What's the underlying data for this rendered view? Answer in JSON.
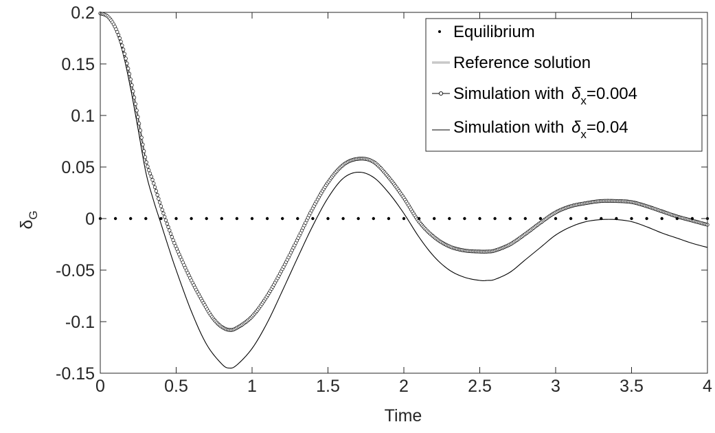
{
  "chart_data": {
    "type": "line",
    "title": "",
    "xlabel": "Time",
    "ylabel": {
      "main": "δ",
      "sub": "G"
    },
    "xlim": [
      0,
      4
    ],
    "ylim": [
      -0.15,
      0.2
    ],
    "x_ticks": [
      "0",
      "0.5",
      "1",
      "1.5",
      "2",
      "2.5",
      "3",
      "3.5",
      "4"
    ],
    "y_ticks": [
      "-0.15",
      "-0.1",
      "-0.05",
      "0",
      "0.05",
      "0.1",
      "0.15",
      "0.2"
    ],
    "grid": false,
    "legend_position": "top-right",
    "legend": [
      {
        "key": "equilibrium",
        "text": "Equilibrium",
        "suffix": ""
      },
      {
        "key": "reference",
        "text": "Reference solution",
        "suffix": ""
      },
      {
        "key": "fine",
        "text": "Simulation with ",
        "symbol": "δ",
        "sub": "x",
        "suffix": "=0.004"
      },
      {
        "key": "coarse",
        "text": "Simulation with ",
        "symbol": "δ",
        "sub": "x",
        "suffix": "=0.04"
      }
    ],
    "series": [
      {
        "key": "equilibrium",
        "style": "dots",
        "color": "#000000",
        "x": [
          0,
          0.1,
          0.2,
          0.3,
          0.4,
          0.5,
          0.6,
          0.7,
          0.8,
          0.9,
          1.0,
          1.1,
          1.2,
          1.3,
          1.4,
          1.5,
          1.6,
          1.7,
          1.8,
          1.9,
          2.0,
          2.1,
          2.2,
          2.3,
          2.4,
          2.5,
          2.6,
          2.7,
          2.8,
          2.9,
          3.0,
          3.1,
          3.2,
          3.3,
          3.4,
          3.5,
          3.6,
          3.7,
          3.8,
          3.9,
          4.0
        ],
        "y": [
          0,
          0,
          0,
          0,
          0,
          0,
          0,
          0,
          0,
          0,
          0,
          0,
          0,
          0,
          0,
          0,
          0,
          0,
          0,
          0,
          0,
          0,
          0,
          0,
          0,
          0,
          0,
          0,
          0,
          0,
          0,
          0,
          0,
          0,
          0,
          0,
          0,
          0,
          0,
          0,
          0
        ]
      },
      {
        "key": "reference",
        "style": "line",
        "color": "#c8c8c8",
        "x": [
          0,
          0.05,
          0.1,
          0.15,
          0.2,
          0.25,
          0.3,
          0.35,
          0.4,
          0.45,
          0.5,
          0.6,
          0.7,
          0.75,
          0.8,
          0.85,
          0.9,
          1.0,
          1.1,
          1.2,
          1.3,
          1.4,
          1.5,
          1.6,
          1.7,
          1.8,
          1.9,
          2.0,
          2.1,
          2.2,
          2.3,
          2.4,
          2.5,
          2.55,
          2.6,
          2.7,
          2.8,
          2.9,
          3.0,
          3.1,
          3.2,
          3.3,
          3.4,
          3.5,
          3.6,
          3.7,
          3.8,
          3.9,
          4.0
        ],
        "y": [
          0.199,
          0.196,
          0.185,
          0.165,
          0.135,
          0.097,
          0.057,
          0.035,
          0.012,
          -0.009,
          -0.028,
          -0.06,
          -0.087,
          -0.098,
          -0.105,
          -0.108,
          -0.106,
          -0.095,
          -0.075,
          -0.049,
          -0.02,
          0.01,
          0.035,
          0.052,
          0.058,
          0.055,
          0.04,
          0.02,
          -0.003,
          -0.018,
          -0.027,
          -0.031,
          -0.032,
          -0.032,
          -0.031,
          -0.025,
          -0.015,
          -0.004,
          0.006,
          0.012,
          0.015,
          0.017,
          0.017,
          0.016,
          0.012,
          0.007,
          0.002,
          -0.002,
          -0.006
        ]
      },
      {
        "key": "fine",
        "style": "circles",
        "color": "#000000",
        "x": [
          0,
          0.05,
          0.1,
          0.15,
          0.2,
          0.25,
          0.3,
          0.35,
          0.4,
          0.45,
          0.5,
          0.6,
          0.7,
          0.75,
          0.8,
          0.85,
          0.9,
          1.0,
          1.1,
          1.2,
          1.3,
          1.4,
          1.5,
          1.6,
          1.7,
          1.8,
          1.9,
          2.0,
          2.1,
          2.2,
          2.3,
          2.4,
          2.5,
          2.55,
          2.6,
          2.7,
          2.8,
          2.9,
          3.0,
          3.1,
          3.2,
          3.3,
          3.4,
          3.5,
          3.6,
          3.7,
          3.8,
          3.9,
          4.0
        ],
        "y": [
          0.199,
          0.196,
          0.185,
          0.165,
          0.135,
          0.097,
          0.057,
          0.035,
          0.012,
          -0.009,
          -0.028,
          -0.06,
          -0.087,
          -0.098,
          -0.105,
          -0.108,
          -0.106,
          -0.095,
          -0.075,
          -0.049,
          -0.02,
          0.01,
          0.035,
          0.052,
          0.058,
          0.055,
          0.04,
          0.02,
          -0.003,
          -0.018,
          -0.027,
          -0.031,
          -0.032,
          -0.032,
          -0.031,
          -0.025,
          -0.015,
          -0.004,
          0.006,
          0.012,
          0.015,
          0.017,
          0.017,
          0.016,
          0.012,
          0.007,
          0.002,
          -0.002,
          -0.006
        ]
      },
      {
        "key": "coarse",
        "style": "line",
        "color": "#000000",
        "x": [
          0,
          0.05,
          0.1,
          0.15,
          0.2,
          0.25,
          0.3,
          0.35,
          0.4,
          0.45,
          0.5,
          0.6,
          0.7,
          0.8,
          0.85,
          0.9,
          1.0,
          1.1,
          1.2,
          1.3,
          1.4,
          1.5,
          1.6,
          1.7,
          1.8,
          1.9,
          2.0,
          2.1,
          2.2,
          2.3,
          2.4,
          2.5,
          2.55,
          2.6,
          2.7,
          2.8,
          2.9,
          3.0,
          3.1,
          3.2,
          3.3,
          3.4,
          3.5,
          3.6,
          3.7,
          3.8,
          3.9,
          4.0
        ],
        "y": [
          0.199,
          0.195,
          0.183,
          0.16,
          0.126,
          0.086,
          0.045,
          0.018,
          -0.005,
          -0.028,
          -0.05,
          -0.09,
          -0.122,
          -0.141,
          -0.145,
          -0.142,
          -0.126,
          -0.101,
          -0.07,
          -0.038,
          -0.007,
          0.02,
          0.039,
          0.045,
          0.04,
          0.025,
          0.005,
          -0.018,
          -0.037,
          -0.05,
          -0.057,
          -0.06,
          -0.06,
          -0.059,
          -0.052,
          -0.04,
          -0.028,
          -0.016,
          -0.008,
          -0.003,
          -0.001,
          -0.001,
          -0.003,
          -0.008,
          -0.014,
          -0.019,
          -0.024,
          -0.028
        ]
      }
    ]
  }
}
